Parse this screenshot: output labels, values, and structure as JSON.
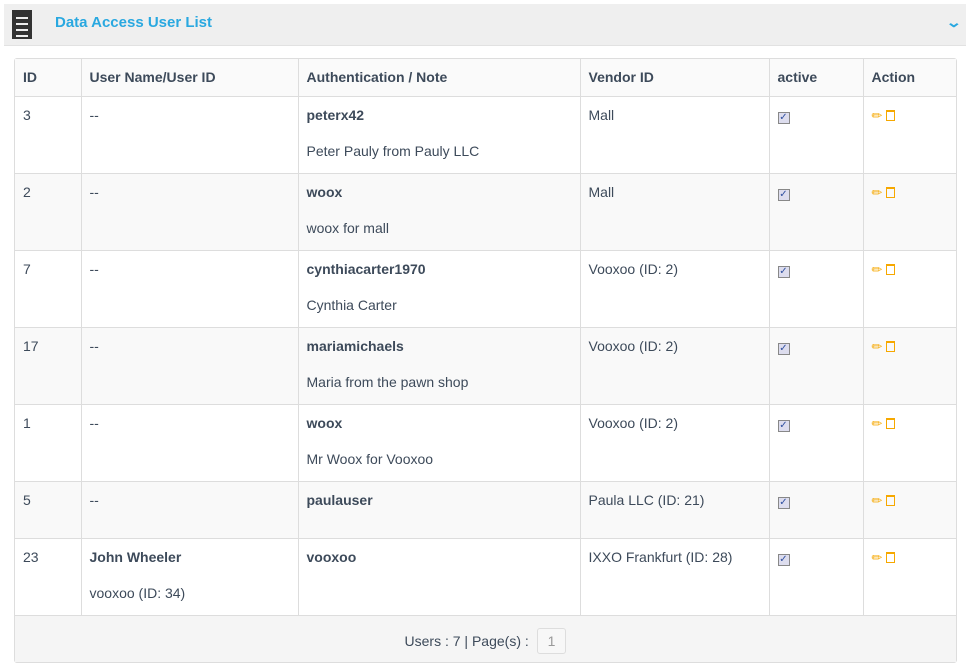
{
  "panel": {
    "title": "Data Access User List",
    "icon": "notepad-icon",
    "collapse_icon": "chevron-down-icon"
  },
  "table": {
    "headers": [
      "ID",
      "User Name/User ID",
      "Authentication / Note",
      "Vendor ID",
      "active",
      "Action"
    ],
    "rows": [
      {
        "id": "3",
        "user": "--",
        "user_sub": "",
        "auth": "peterx42",
        "note": "Peter Pauly from Pauly LLC",
        "vendor": "Mall",
        "active": true
      },
      {
        "id": "2",
        "user": "--",
        "user_sub": "",
        "auth": "woox",
        "note": "woox for mall",
        "vendor": "Mall",
        "active": true
      },
      {
        "id": "7",
        "user": "--",
        "user_sub": "",
        "auth": "cynthiacarter1970",
        "note": "Cynthia Carter",
        "vendor": "Vooxoo (ID: 2)",
        "active": true
      },
      {
        "id": "17",
        "user": "--",
        "user_sub": "",
        "auth": "mariamichaels",
        "note": "Maria from the pawn shop",
        "vendor": "Vooxoo (ID: 2)",
        "active": true
      },
      {
        "id": "1",
        "user": "--",
        "user_sub": "",
        "auth": "woox",
        "note": "Mr Woox for Vooxoo",
        "vendor": "Vooxoo (ID: 2)",
        "active": true
      },
      {
        "id": "5",
        "user": "--",
        "user_sub": "",
        "auth": "paulauser",
        "note": "",
        "vendor": "Paula LLC (ID: 21)",
        "active": true
      },
      {
        "id": "23",
        "user": "John Wheeler",
        "user_sub": "vooxoo (ID: 34)",
        "auth": "vooxoo",
        "note": "",
        "vendor": "IXXO Frankfurt (ID: 28)",
        "active": true
      }
    ]
  },
  "footer": {
    "text": "Users : 7 | Page(s) :",
    "page": "1"
  },
  "colors": {
    "accent": "#29a8e0",
    "action": "#f6a800"
  }
}
